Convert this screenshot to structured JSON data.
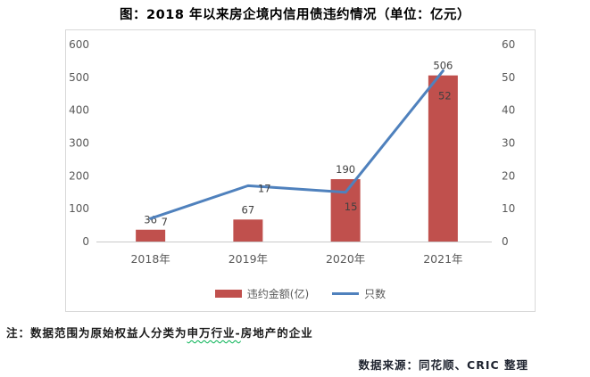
{
  "title": "图：2018 年以来房企境内信用债违约情况（单位：亿元）",
  "chart_data": {
    "type": "bar",
    "subtype": "bar+line combo, dual axis",
    "categories": [
      "2018年",
      "2019年",
      "2020年",
      "2021年"
    ],
    "series": [
      {
        "name": "违约金额(亿)",
        "type": "bar",
        "axis": "left",
        "color": "#C0504D",
        "values": [
          36,
          67,
          190,
          506
        ]
      },
      {
        "name": "只数",
        "type": "line",
        "axis": "right",
        "color": "#4F81BD",
        "values": [
          7,
          17,
          15,
          52
        ]
      }
    ],
    "left_axis": {
      "min": 0,
      "max": 600,
      "step": 100,
      "ticks": [
        0,
        100,
        200,
        300,
        400,
        500,
        600
      ]
    },
    "right_axis": {
      "min": 0,
      "max": 60,
      "step": 10,
      "ticks": [
        0,
        10,
        20,
        30,
        40,
        50,
        60
      ]
    },
    "grid": false,
    "legend_position": "bottom",
    "title": "图：2018 年以来房企境内信用债违约情况（单位：亿元）"
  },
  "legend": {
    "bar_label": "违约金额(亿)",
    "line_label": "只数"
  },
  "note": {
    "prefix": "注：数据范围为原始权益人分类为",
    "underlined": "申万行业-",
    "suffix": "房地产的企业"
  },
  "source": "数据来源：同花顺、CRIC 整理",
  "colors": {
    "bar": "#C0504D",
    "line": "#4F81BD",
    "axis_text": "#595959",
    "data_label": "#404040",
    "chart_border": "#d9d9d9",
    "baseline": "#c9c9c9",
    "wavy_underline": "#00B050"
  }
}
